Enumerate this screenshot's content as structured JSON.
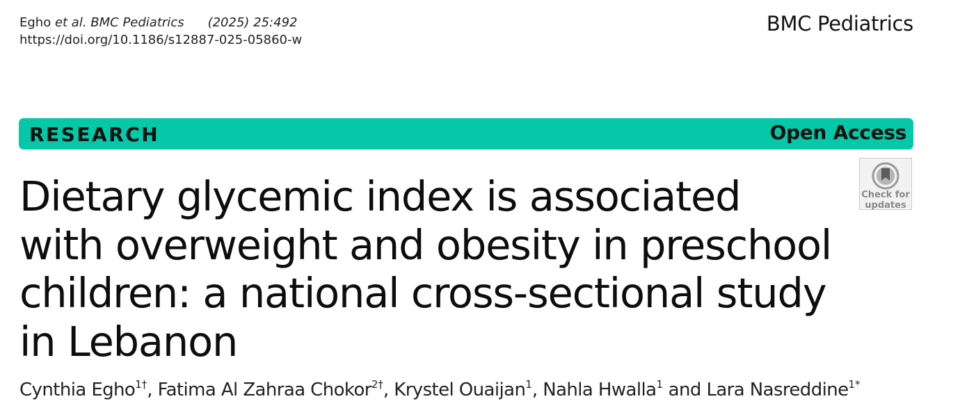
{
  "header": {
    "citation_authors": "Egho ",
    "citation_etal": "et al.",
    "citation_journal": " BMC Pediatrics",
    "citation_year_volume": "(2025) 25:492",
    "doi": "https://doi.org/10.1186/s12887-025-05860-w",
    "journal_name": "BMC Pediatrics"
  },
  "banner": {
    "section": "RESEARCH",
    "access": "Open Access",
    "color": "#04c8a8"
  },
  "check_for_updates": {
    "line1": "Check for",
    "line2": "updates",
    "icon": "check-for-updates-icon"
  },
  "article": {
    "title_lines": [
      "Dietary glycemic index is associated",
      "with overweight and obesity in preschool",
      "children: a national cross-sectional study",
      "in Lebanon"
    ],
    "authors": [
      {
        "name": "Cynthia Egho",
        "sup": "1†",
        "sep": ", "
      },
      {
        "name": "Fatima Al Zahraa Chokor",
        "sup": "2†",
        "sep": ", "
      },
      {
        "name": "Krystel Ouaijan",
        "sup": "1",
        "sep": ", "
      },
      {
        "name": "Nahla Hwalla",
        "sup": "1",
        "sep": " and "
      },
      {
        "name": "Lara Nasreddine",
        "sup": "1*",
        "sep": ""
      }
    ]
  }
}
